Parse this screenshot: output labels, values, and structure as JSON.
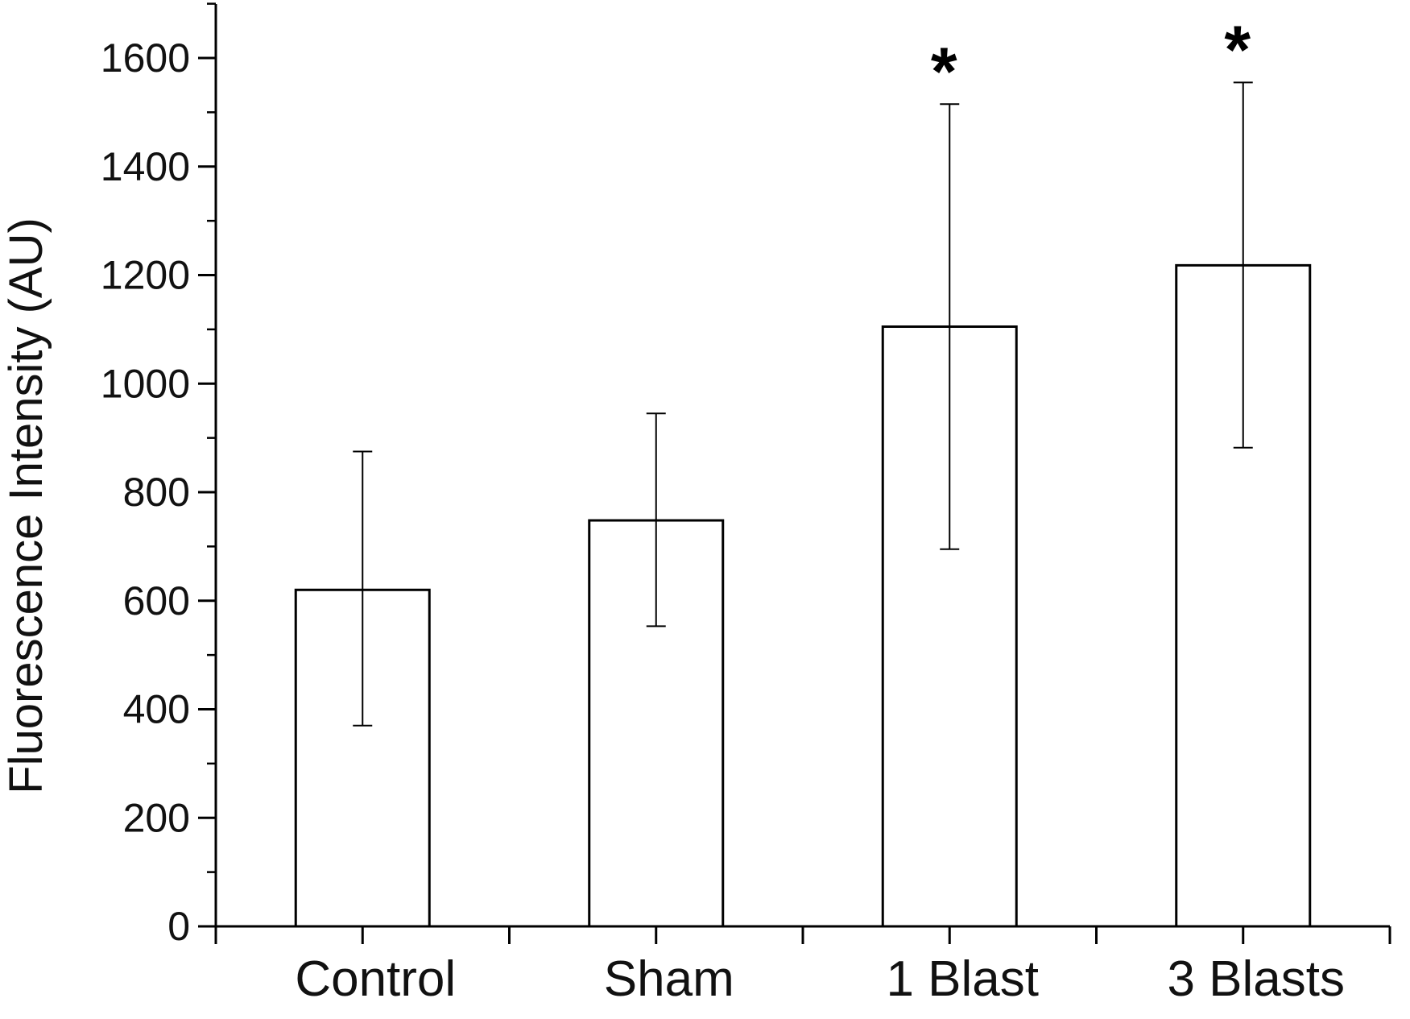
{
  "chart_data": {
    "type": "bar",
    "title": "",
    "xlabel": "",
    "ylabel": "Fluorescence Intensity (AU)",
    "categories": [
      "Control",
      "Sham",
      "1 Blast",
      "3 Blasts"
    ],
    "values": [
      620,
      748,
      1105,
      1218
    ],
    "error_low": [
      370,
      553,
      695,
      882
    ],
    "error_high": [
      875,
      945,
      1515,
      1555
    ],
    "annotations": [
      "",
      "",
      "*",
      "*"
    ],
    "ylim": [
      0,
      1700
    ],
    "yticks": [
      0,
      200,
      400,
      600,
      800,
      1000,
      1200,
      1400,
      1600
    ],
    "ytick_labels": [
      "0",
      "200",
      "400",
      "600",
      "800",
      "1000",
      "1200",
      "1400",
      "1600"
    ],
    "grid": false,
    "legend": "none",
    "colors": {
      "bar_fill": "#ffffff",
      "bar_stroke": "#000000",
      "axis": "#000000",
      "text": "#111111"
    }
  }
}
